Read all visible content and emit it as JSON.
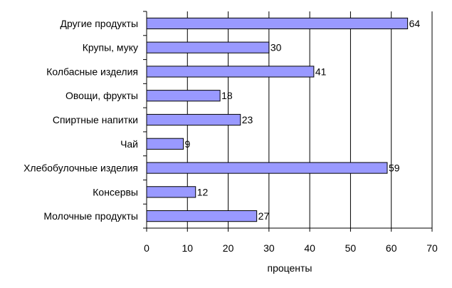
{
  "chart_data": {
    "type": "bar",
    "orientation": "horizontal",
    "categories": [
      "Другие продукты",
      "Крупы, муку",
      "Колбасные изделия",
      "Овощи, фрукты",
      "Спиртные напитки",
      "Чай",
      "Хлебобулочные изделия",
      "Консервы",
      "Молочные продукты"
    ],
    "values": [
      64,
      30,
      41,
      18,
      23,
      9,
      59,
      12,
      27
    ],
    "xlabel": "проценты",
    "ylabel": "",
    "xlim": [
      0,
      70
    ],
    "xticks": [
      0,
      10,
      20,
      30,
      40,
      50,
      60,
      70
    ],
    "grid": "vertical",
    "bar_color": "#9999ff",
    "bar_edge_color": "#000000",
    "data_labels": true
  }
}
